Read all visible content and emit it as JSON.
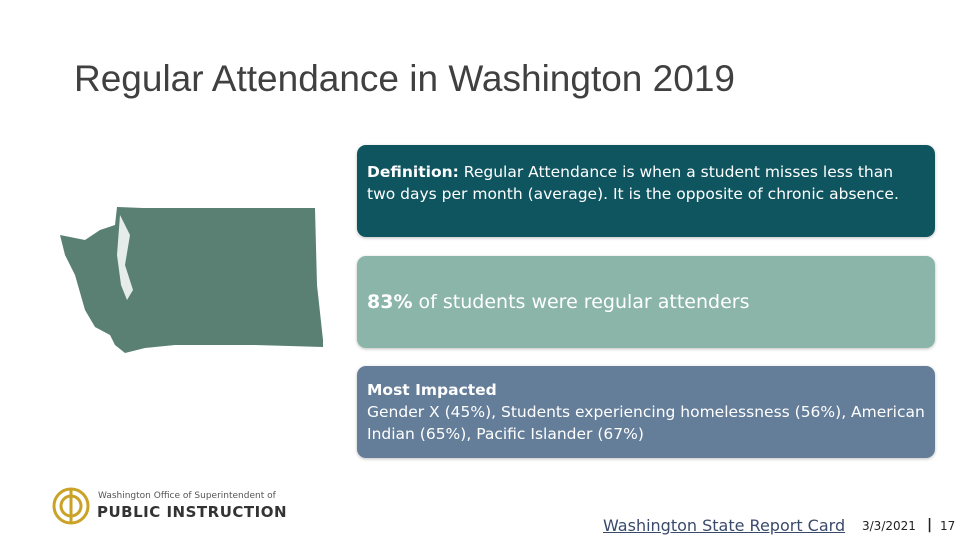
{
  "header": {
    "title": "Regular Attendance in Washington 2019"
  },
  "definition": {
    "label": "Definition:",
    "text": "Regular Attendance is when a student misses less than two days per month (average). It is the opposite of chronic absence."
  },
  "stat": {
    "value": "83%",
    "text": "of students were regular attenders"
  },
  "impact": {
    "heading": "Most Impacted",
    "text": "Gender X (45%), Students experiencing homelessness (56%), American Indian (65%), Pacific Islander (67%)"
  },
  "logo": {
    "line1": "Washington Office of Superintendent of",
    "line2": "PUBLIC INSTRUCTION"
  },
  "footer": {
    "link": "Washington State Report Card",
    "date": "3/3/2021",
    "separator": "|",
    "page": "17"
  }
}
